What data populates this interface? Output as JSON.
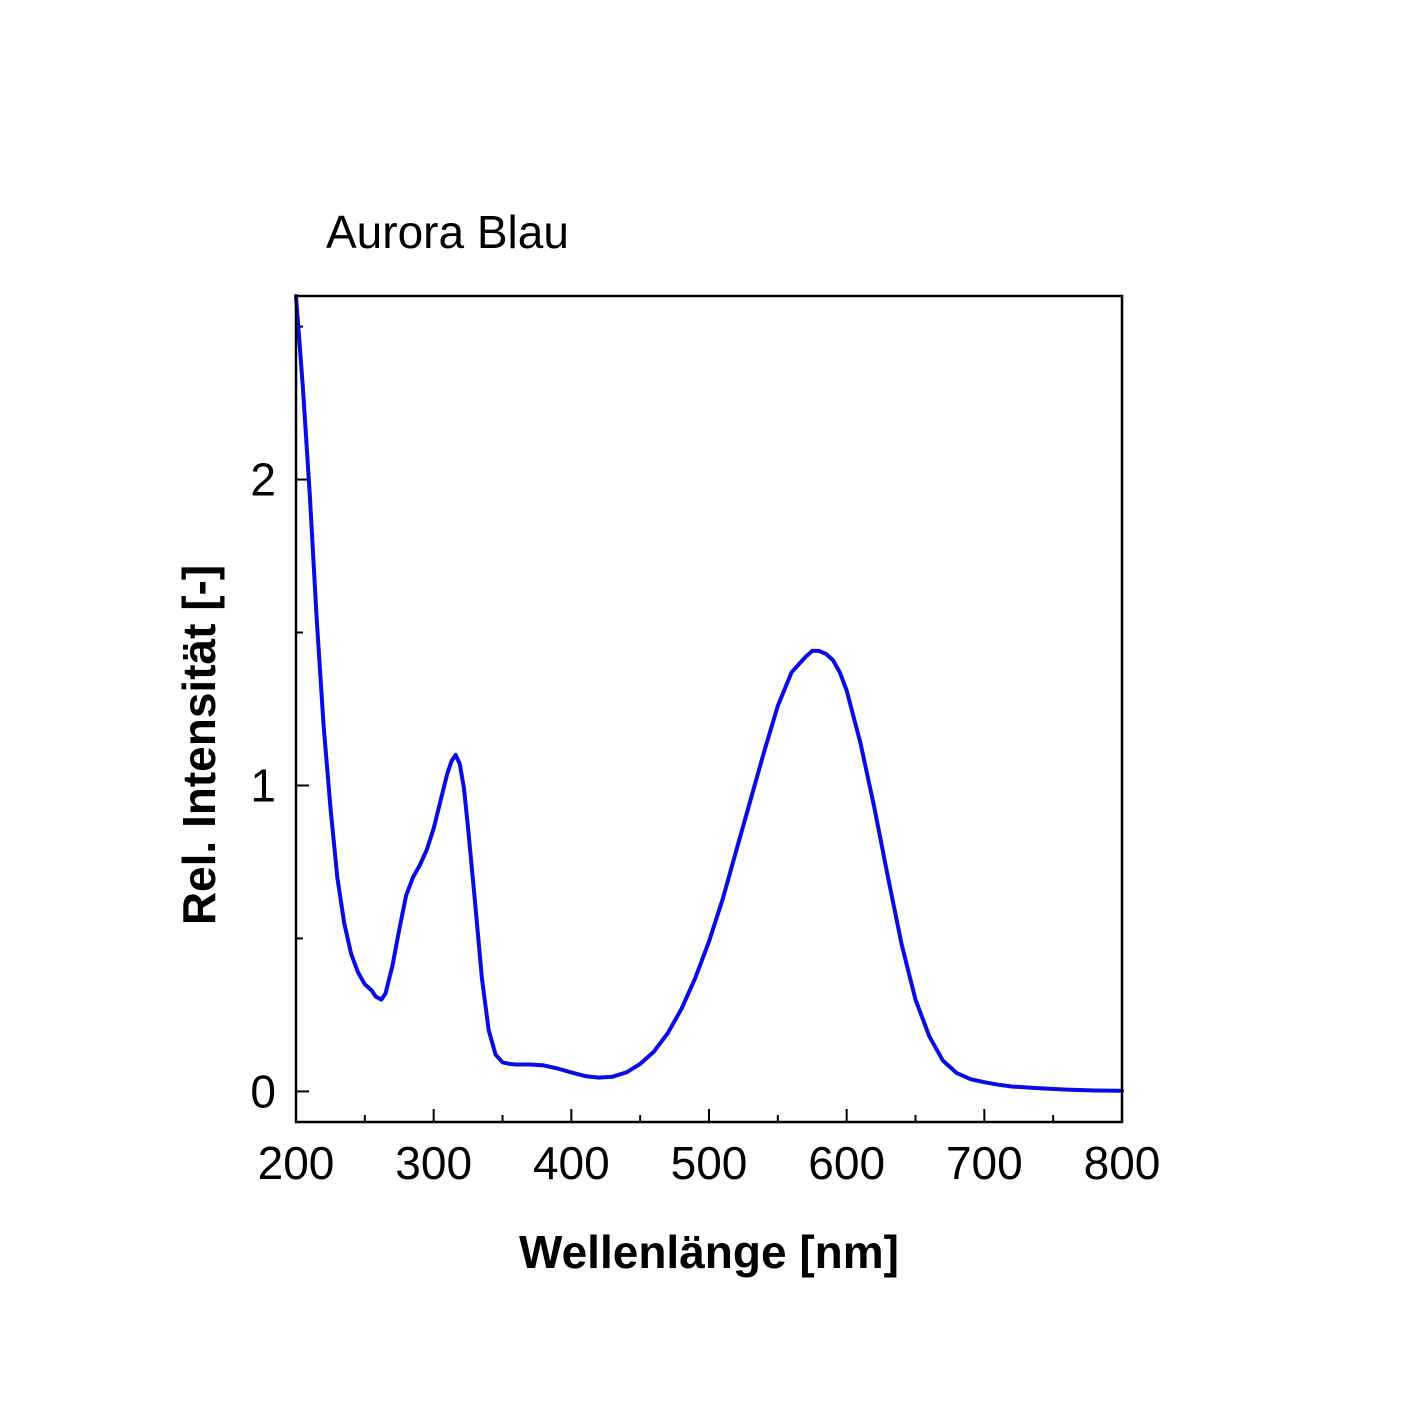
{
  "chart_data": {
    "type": "line",
    "title": "Aurora Blau",
    "xlabel": "Wellenlänge [nm]",
    "ylabel": "Rel. Intensität [-]",
    "xlim": [
      200,
      800
    ],
    "ylim": [
      -0.1,
      2.6
    ],
    "x_ticks": [
      200,
      300,
      400,
      500,
      600,
      700,
      800
    ],
    "y_ticks": [
      0,
      1,
      2
    ],
    "x_tick_labels": [
      "200",
      "300",
      "400",
      "500",
      "600",
      "700",
      "800"
    ],
    "y_tick_labels": [
      "0",
      "1",
      "2"
    ],
    "grid": false,
    "legend": "none",
    "series": [
      {
        "color": "#0a0ae6",
        "x": [
          200,
          205,
          210,
          215,
          220,
          225,
          230,
          235,
          240,
          245,
          250,
          255,
          258,
          262,
          265,
          270,
          275,
          280,
          285,
          290,
          295,
          300,
          305,
          310,
          313,
          316,
          319,
          322,
          325,
          330,
          335,
          340,
          345,
          350,
          355,
          360,
          370,
          380,
          390,
          400,
          410,
          420,
          430,
          440,
          450,
          460,
          470,
          480,
          490,
          500,
          510,
          520,
          530,
          540,
          550,
          560,
          570,
          575,
          580,
          585,
          590,
          595,
          600,
          610,
          620,
          630,
          640,
          650,
          660,
          670,
          680,
          690,
          700,
          710,
          720,
          740,
          760,
          780,
          800
        ],
        "y": [
          2.6,
          2.3,
          1.95,
          1.55,
          1.2,
          0.93,
          0.7,
          0.55,
          0.45,
          0.39,
          0.35,
          0.33,
          0.31,
          0.3,
          0.32,
          0.41,
          0.53,
          0.64,
          0.7,
          0.74,
          0.79,
          0.86,
          0.95,
          1.04,
          1.08,
          1.1,
          1.07,
          0.99,
          0.86,
          0.62,
          0.37,
          0.2,
          0.12,
          0.095,
          0.09,
          0.088,
          0.088,
          0.085,
          0.075,
          0.062,
          0.05,
          0.045,
          0.048,
          0.062,
          0.09,
          0.13,
          0.19,
          0.27,
          0.37,
          0.49,
          0.63,
          0.79,
          0.95,
          1.11,
          1.26,
          1.37,
          1.42,
          1.44,
          1.44,
          1.43,
          1.41,
          1.37,
          1.31,
          1.14,
          0.93,
          0.7,
          0.48,
          0.3,
          0.18,
          0.1,
          0.06,
          0.04,
          0.03,
          0.022,
          0.016,
          0.01,
          0.006,
          0.003,
          0.002
        ]
      }
    ]
  }
}
